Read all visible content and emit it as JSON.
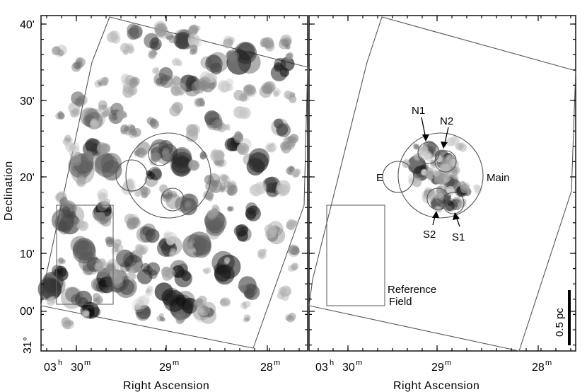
{
  "figure": {
    "y_axis_title": "Declination",
    "x_axis_title": "Right Ascension",
    "dec_ticks": [
      {
        "deg": "",
        "min": "40'"
      },
      {
        "deg": "",
        "min": "30'"
      },
      {
        "deg": "",
        "min": "20'"
      },
      {
        "deg": "",
        "min": "10'"
      },
      {
        "deg": "",
        "min": "00'"
      },
      {
        "deg": "31°",
        "min": ""
      }
    ],
    "ra_ticks": [
      {
        "hours": "03",
        "h_unit": "h",
        "minutes": "30",
        "m_unit": "m"
      },
      {
        "hours": "",
        "h_unit": "",
        "minutes": "29",
        "m_unit": "m"
      },
      {
        "hours": "",
        "h_unit": "",
        "minutes": "28",
        "m_unit": "m"
      }
    ],
    "right_panel_labels": {
      "n1": "N1",
      "n2": "N2",
      "e": "E",
      "main": "Main",
      "s2": "S2",
      "s1": "S1",
      "reference_line1": "Reference",
      "reference_line2": "Field"
    },
    "scale_bar_label": "0.5 pc",
    "colors": {
      "ink": "#000000",
      "outline": "#555555",
      "background": "#ffffff"
    }
  }
}
